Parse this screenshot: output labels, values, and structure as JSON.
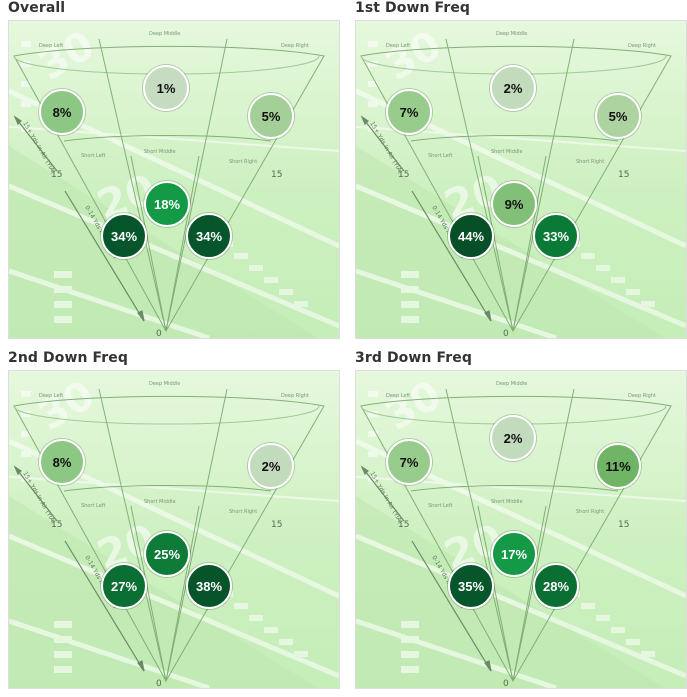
{
  "zone_labels": {
    "deep_left": "Deep Left",
    "deep_middle": "Deep Middle",
    "deep_right": "Deep Right",
    "short_left": "Short Left",
    "short_middle": "Short Middle",
    "short_right": "Short Right",
    "yard_15": "15",
    "yard_0": "0",
    "axis_short": "0-14 Yds In Air (YIA)",
    "axis_deep": "15+ Yds In Air (YIA)"
  },
  "panels": [
    {
      "title": "Overall",
      "zones": {
        "deep_left": {
          "label": "8%",
          "value": 8,
          "color": "#8cc784",
          "text_color": "#111111"
        },
        "deep_middle": {
          "label": "1%",
          "value": 1,
          "color": "#c6dcc0",
          "text_color": "#111111"
        },
        "deep_right": {
          "label": "5%",
          "value": 5,
          "color": "#a5cf98",
          "text_color": "#111111"
        },
        "short_middle": {
          "label": "18%",
          "value": 18,
          "color": "#149a47",
          "text_color": "#ffffff"
        },
        "short_left": {
          "label": "34%",
          "value": 34,
          "color": "#07562b",
          "text_color": "#ffffff"
        },
        "short_right": {
          "label": "34%",
          "value": 34,
          "color": "#07562b",
          "text_color": "#ffffff"
        }
      }
    },
    {
      "title": "1st Down Freq",
      "zones": {
        "deep_left": {
          "label": "7%",
          "value": 7,
          "color": "#98cc8c",
          "text_color": "#111111"
        },
        "deep_middle": {
          "label": "2%",
          "value": 2,
          "color": "#c3dbbd",
          "text_color": "#111111"
        },
        "deep_right": {
          "label": "5%",
          "value": 5,
          "color": "#add3a1",
          "text_color": "#111111"
        },
        "short_middle": {
          "label": "9%",
          "value": 9,
          "color": "#82bf78",
          "text_color": "#111111"
        },
        "short_left": {
          "label": "44%",
          "value": 44,
          "color": "#064f27",
          "text_color": "#ffffff"
        },
        "short_right": {
          "label": "33%",
          "value": 33,
          "color": "#0c7a37",
          "text_color": "#ffffff"
        }
      }
    },
    {
      "title": "2nd Down Freq",
      "zones": {
        "deep_left": {
          "label": "8%",
          "value": 8,
          "color": "#8cc784",
          "text_color": "#111111"
        },
        "deep_middle": {
          "label": "",
          "value": null,
          "color": "",
          "text_color": ""
        },
        "deep_right": {
          "label": "2%",
          "value": 2,
          "color": "#c3dbbd",
          "text_color": "#111111"
        },
        "short_middle": {
          "label": "25%",
          "value": 25,
          "color": "#0f7b38",
          "text_color": "#ffffff"
        },
        "short_left": {
          "label": "27%",
          "value": 27,
          "color": "#0b6e33",
          "text_color": "#ffffff"
        },
        "short_right": {
          "label": "38%",
          "value": 38,
          "color": "#07542a",
          "text_color": "#ffffff"
        }
      }
    },
    {
      "title": "3rd Down Freq",
      "zones": {
        "deep_left": {
          "label": "7%",
          "value": 7,
          "color": "#98cc8c",
          "text_color": "#111111"
        },
        "deep_middle": {
          "label": "2%",
          "value": 2,
          "color": "#c3dbbd",
          "text_color": "#111111"
        },
        "deep_right": {
          "label": "11%",
          "value": 11,
          "color": "#6fb565",
          "text_color": "#111111"
        },
        "short_middle": {
          "label": "17%",
          "value": 17,
          "color": "#149a47",
          "text_color": "#ffffff"
        },
        "short_left": {
          "label": "35%",
          "value": 35,
          "color": "#07562b",
          "text_color": "#ffffff"
        },
        "short_right": {
          "label": "28%",
          "value": 28,
          "color": "#0b6e33",
          "text_color": "#ffffff"
        }
      }
    }
  ]
}
